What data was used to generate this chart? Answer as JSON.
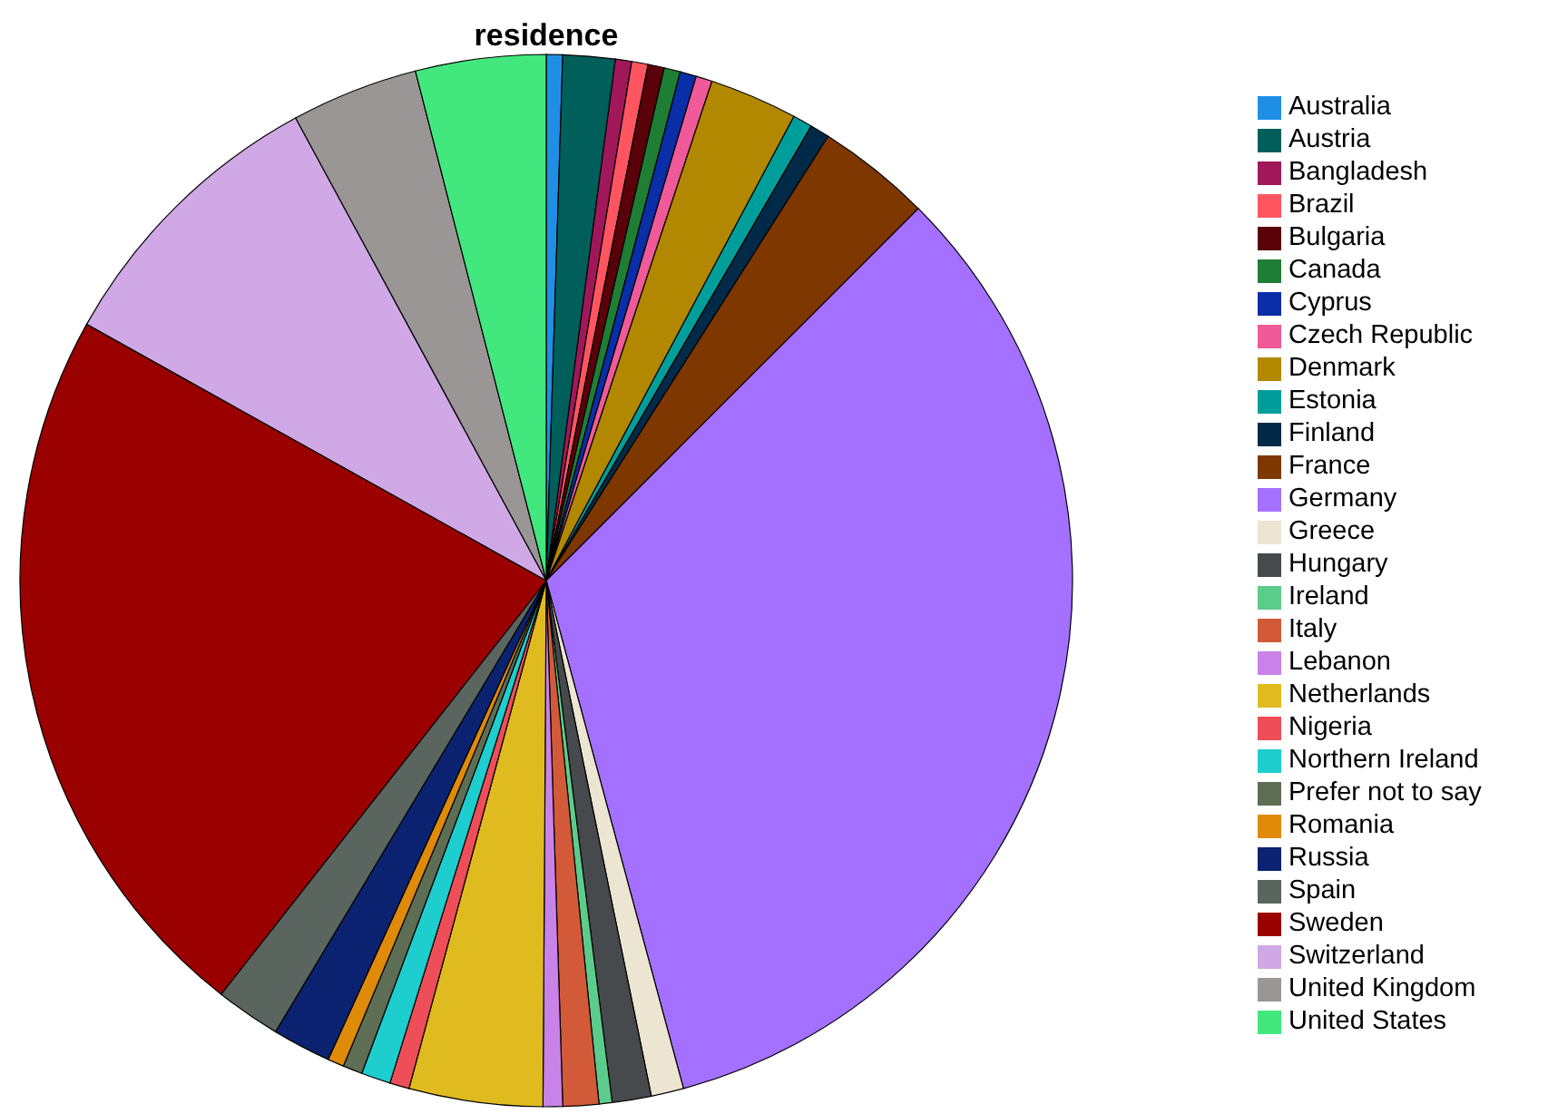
{
  "chart_data": {
    "type": "pie",
    "title": "residence",
    "legend": "right",
    "categories": [
      "Australia",
      "Austria",
      "Bangladesh",
      "Brazil",
      "Bulgaria",
      "Canada",
      "Cyprus",
      "Czech Republic",
      "Denmark",
      "Estonia",
      "Finland",
      "France",
      "Germany",
      "Greece",
      "Hungary",
      "Ireland",
      "Italy",
      "Lebanon",
      "Netherlands",
      "Nigeria",
      "Northern Ireland",
      "Prefer not to say",
      "Romania",
      "Russia",
      "Spain",
      "Sweden",
      "Switzerland",
      "United Kingdom",
      "United States"
    ],
    "values": [
      0.5,
      1.6,
      0.5,
      0.5,
      0.5,
      0.5,
      0.5,
      0.5,
      2.7,
      0.6,
      0.6,
      3.5,
      33.3,
      1.0,
      1.2,
      0.4,
      1.1,
      0.6,
      4.1,
      0.6,
      0.9,
      0.6,
      0.5,
      1.8,
      2.0,
      22.5,
      9.0,
      3.9,
      4.0
    ],
    "colors": [
      "#1f8fe6",
      "#005f5a",
      "#a0185a",
      "#ff5560",
      "#5a0008",
      "#1e7e34",
      "#0a2ea8",
      "#f05a98",
      "#b28800",
      "#009e9a",
      "#002a48",
      "#7f3700",
      "#a470ff",
      "#ebe5d2",
      "#464a4c",
      "#5ccc8c",
      "#d35a38",
      "#c982e8",
      "#e0bb20",
      "#ee4e58",
      "#1ecece",
      "#5d6e54",
      "#e08a0a",
      "#0a2270",
      "#5a6560",
      "#9a0000",
      "#d0a8e6",
      "#9a9696",
      "#42e87e"
    ]
  }
}
